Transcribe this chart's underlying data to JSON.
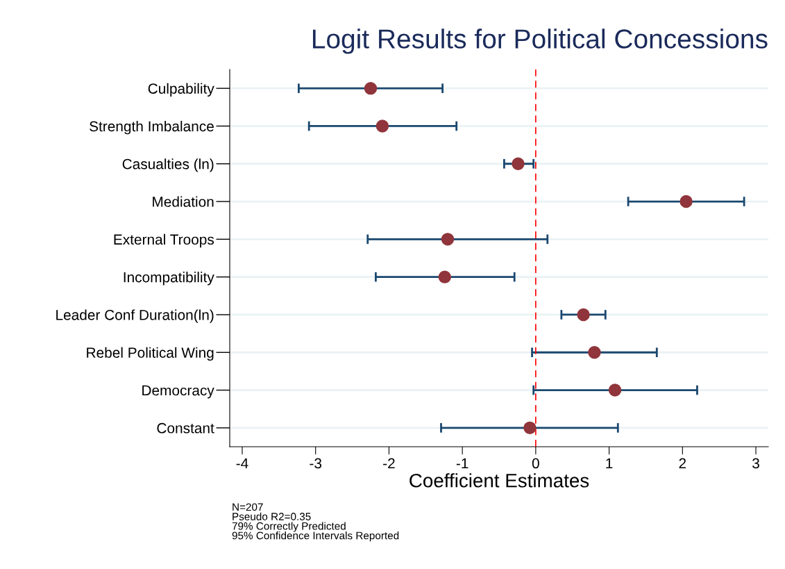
{
  "chart_data": {
    "type": "scatter",
    "orientation": "horizontal",
    "title": "Logit Results for Political Concessions",
    "xlabel": "Coefficient Estimates",
    "categories": [
      "Culpability",
      "Strength Imbalance",
      "Casualties (ln)",
      "Mediation",
      "External Troops",
      "Incompatibility",
      "Leader Conf Duration(ln)",
      "Rebel Political Wing",
      "Democracy",
      "Constant"
    ],
    "series": [
      {
        "color": "#90353b",
        "values": [
          -2.25,
          -2.09,
          -0.24,
          2.05,
          -1.2,
          -1.24,
          0.65,
          0.8,
          1.08,
          -0.08
        ],
        "errors": [
          [
            -3.23,
            -1.27
          ],
          [
            -3.09,
            -1.08
          ],
          [
            -0.43,
            -0.03
          ],
          [
            1.26,
            2.84
          ],
          [
            -2.29,
            0.16
          ],
          [
            -2.18,
            -0.29
          ],
          [
            0.35,
            0.95
          ],
          [
            -0.05,
            1.65
          ],
          [
            -0.03,
            2.2
          ],
          [
            -1.29,
            1.12
          ]
        ]
      }
    ],
    "xlim": [
      -4.17,
      3.17
    ],
    "xticks": [
      {
        "value": -4,
        "label": "-4"
      },
      {
        "value": -3,
        "label": "-3"
      },
      {
        "value": -2,
        "label": "-2"
      },
      {
        "value": -1,
        "label": "-1"
      },
      0,
      1,
      2,
      3
    ],
    "ref_lines": [
      {
        "axis": "x",
        "value": 0,
        "color": "#ff0000",
        "line_style": "dashed"
      }
    ],
    "grid": "y",
    "marker": "circle",
    "annotations": [
      "N=207",
      "Pseudo R2=0.35",
      "79% Correctly Predicted",
      "95% Confidence Intervals Reported"
    ]
  }
}
